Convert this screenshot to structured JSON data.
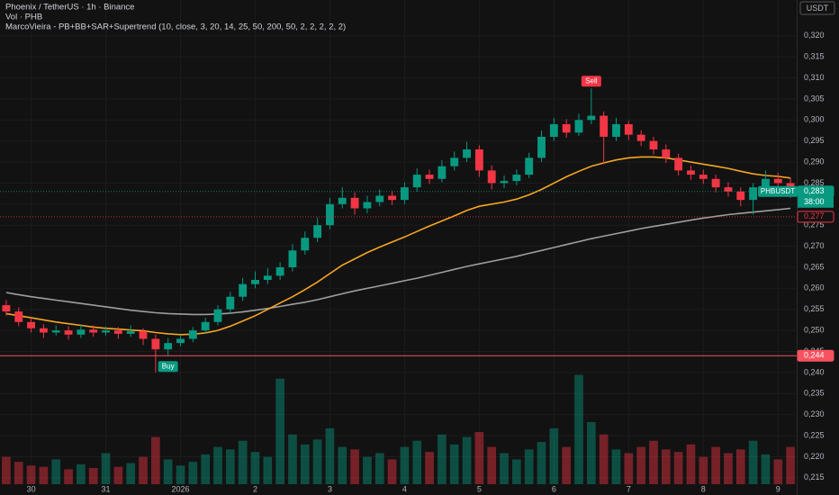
{
  "chart_data": {
    "type": "candlestick",
    "title": "Phoenix / TetherUS · 1h · Binance",
    "volume_label": "Vol · PHB",
    "indicator_label": "MarcoVieira - PB+BB+SAR+Supertrend (10, close, 3, 20, 14, 25, 50, 200, 50, 2, 2, 2, 2, 2)",
    "currency": "USDT",
    "symbol": "PHBUSDT",
    "countdown": "38:00",
    "up_color": "#089981",
    "down_color": "#f23645",
    "categories": [
      null,
      null,
      "30",
      null,
      null,
      null,
      null,
      null,
      "31",
      null,
      null,
      null,
      null,
      null,
      "2026",
      null,
      null,
      null,
      null,
      null,
      "2",
      null,
      null,
      null,
      null,
      null,
      "3",
      null,
      null,
      null,
      null,
      null,
      "4",
      null,
      null,
      null,
      null,
      null,
      "5",
      null,
      null,
      null,
      null,
      null,
      "6",
      null,
      null,
      null,
      null,
      null,
      "7",
      null,
      null,
      null,
      null,
      null,
      "8",
      null,
      null,
      null,
      null,
      null,
      "9",
      null
    ],
    "open": [
      0.256,
      0.2545,
      0.252,
      0.2505,
      0.2495,
      0.25,
      0.249,
      0.2502,
      0.2495,
      0.25,
      0.2492,
      0.2498,
      0.248,
      0.2455,
      0.247,
      0.248,
      0.25,
      0.252,
      0.255,
      0.258,
      0.261,
      0.262,
      0.263,
      0.265,
      0.269,
      0.272,
      0.275,
      0.28,
      0.2815,
      0.279,
      0.2805,
      0.282,
      0.281,
      0.284,
      0.287,
      0.286,
      0.289,
      0.291,
      0.293,
      0.288,
      0.285,
      0.2855,
      0.287,
      0.291,
      0.296,
      0.299,
      0.297,
      0.3,
      0.301,
      0.296,
      0.299,
      0.2965,
      0.295,
      0.293,
      0.291,
      0.288,
      0.287,
      0.286,
      0.284,
      0.283,
      0.281,
      0.284,
      0.286,
      0.285
    ],
    "high": [
      0.2572,
      0.2555,
      0.253,
      0.2515,
      0.2512,
      0.251,
      0.2515,
      0.2512,
      0.251,
      0.2508,
      0.2512,
      0.2505,
      0.249,
      0.2482,
      0.249,
      0.2508,
      0.253,
      0.256,
      0.2592,
      0.2625,
      0.264,
      0.2648,
      0.2662,
      0.2705,
      0.2735,
      0.2768,
      0.2815,
      0.284,
      0.2828,
      0.282,
      0.2835,
      0.2832,
      0.2852,
      0.2885,
      0.2882,
      0.2905,
      0.2925,
      0.2948,
      0.294,
      0.2892,
      0.2868,
      0.2882,
      0.2922,
      0.2975,
      0.3005,
      0.3002,
      0.3015,
      0.3075,
      0.302,
      0.3005,
      0.2998,
      0.2975,
      0.296,
      0.2942,
      0.292,
      0.2892,
      0.2882,
      0.287,
      0.2852,
      0.284,
      0.285,
      0.288,
      0.2875,
      0.2862
    ],
    "low": [
      0.2535,
      0.251,
      0.2495,
      0.2482,
      0.2488,
      0.2478,
      0.2482,
      0.2485,
      0.2488,
      0.248,
      0.2485,
      0.2465,
      0.24,
      0.244,
      0.2462,
      0.2472,
      0.2492,
      0.2512,
      0.2542,
      0.257,
      0.26,
      0.261,
      0.262,
      0.264,
      0.268,
      0.271,
      0.274,
      0.279,
      0.2775,
      0.2778,
      0.2795,
      0.2798,
      0.28,
      0.283,
      0.2848,
      0.2852,
      0.288,
      0.29,
      0.2865,
      0.2835,
      0.2838,
      0.2845,
      0.2862,
      0.29,
      0.295,
      0.2958,
      0.2962,
      0.299,
      0.2895,
      0.295,
      0.2952,
      0.2938,
      0.2918,
      0.2898,
      0.2868,
      0.2858,
      0.2848,
      0.2828,
      0.2818,
      0.2795,
      0.2775,
      0.283,
      0.284,
      0.2815
    ],
    "close": [
      0.2545,
      0.252,
      0.2505,
      0.2495,
      0.25,
      0.249,
      0.2502,
      0.2495,
      0.25,
      0.2492,
      0.2498,
      0.248,
      0.2455,
      0.247,
      0.248,
      0.25,
      0.252,
      0.255,
      0.258,
      0.261,
      0.262,
      0.263,
      0.265,
      0.269,
      0.272,
      0.275,
      0.28,
      0.2815,
      0.279,
      0.2805,
      0.282,
      0.281,
      0.284,
      0.287,
      0.286,
      0.289,
      0.291,
      0.293,
      0.288,
      0.285,
      0.2855,
      0.287,
      0.291,
      0.296,
      0.299,
      0.297,
      0.3,
      0.301,
      0.296,
      0.299,
      0.2965,
      0.295,
      0.293,
      0.291,
      0.288,
      0.287,
      0.286,
      0.284,
      0.283,
      0.281,
      0.284,
      0.286,
      0.285,
      0.283
    ],
    "volume": [
      22,
      18,
      15,
      14,
      20,
      12,
      16,
      13,
      25,
      14,
      17,
      22,
      38,
      20,
      15,
      18,
      24,
      30,
      28,
      35,
      26,
      22,
      85,
      40,
      32,
      36,
      45,
      30,
      28,
      22,
      25,
      20,
      30,
      35,
      26,
      40,
      32,
      38,
      42,
      30,
      25,
      20,
      28,
      34,
      45,
      30,
      88,
      50,
      40,
      28,
      25,
      30,
      35,
      28,
      26,
      32,
      22,
      30,
      25,
      28,
      35,
      24,
      20,
      30
    ],
    "volume_ylim": [
      0,
      100
    ],
    "overlays": [
      {
        "color": "#9e9e9e",
        "values": [
          0.259,
          0.2585,
          0.258,
          0.2576,
          0.2572,
          0.2568,
          0.2564,
          0.256,
          0.2556,
          0.2552,
          0.2548,
          0.2545,
          0.2542,
          0.254,
          0.2539,
          0.2538,
          0.2538,
          0.2539,
          0.2541,
          0.2544,
          0.2548,
          0.2552,
          0.2557,
          0.2562,
          0.2567,
          0.2573,
          0.258,
          0.2587,
          0.2594,
          0.26,
          0.2606,
          0.2612,
          0.2618,
          0.2624,
          0.2631,
          0.2638,
          0.2645,
          0.2652,
          0.2658,
          0.2664,
          0.267,
          0.2676,
          0.2683,
          0.269,
          0.2697,
          0.2704,
          0.2711,
          0.2718,
          0.2724,
          0.273,
          0.2736,
          0.2742,
          0.2747,
          0.2752,
          0.2757,
          0.2762,
          0.2767,
          0.2771,
          0.2775,
          0.2778,
          0.2781,
          0.2784,
          0.2787,
          0.279
        ]
      },
      {
        "color": "#f5a623",
        "values": [
          0.254,
          0.2535,
          0.253,
          0.2525,
          0.252,
          0.2516,
          0.2512,
          0.2508,
          0.2505,
          0.2503,
          0.2501,
          0.2499,
          0.2495,
          0.2492,
          0.249,
          0.2491,
          0.2494,
          0.25,
          0.251,
          0.2522,
          0.2535,
          0.255,
          0.2565,
          0.258,
          0.2597,
          0.2615,
          0.2635,
          0.2655,
          0.267,
          0.2685,
          0.2698,
          0.271,
          0.2722,
          0.2735,
          0.2748,
          0.276,
          0.2772,
          0.2785,
          0.2795,
          0.28,
          0.2805,
          0.2812,
          0.2822,
          0.2835,
          0.285,
          0.2865,
          0.2878,
          0.289,
          0.2898,
          0.2905,
          0.291,
          0.2912,
          0.2912,
          0.291,
          0.2905,
          0.29,
          0.2895,
          0.289,
          0.2885,
          0.2878,
          0.2872,
          0.2868,
          0.2866,
          0.2862
        ]
      }
    ],
    "signals": [
      {
        "label": "Sell",
        "at": 47,
        "side": "above",
        "color": "#f23645"
      },
      {
        "label": "Buy",
        "at": 13,
        "side": "below",
        "color": "#089981"
      }
    ],
    "price_tags": [
      {
        "value": 0.283,
        "label": "0,283",
        "color": "#089981"
      },
      {
        "value": 0.277,
        "label": "0,277",
        "color": "#f23645"
      },
      {
        "value": 0.244,
        "label": "0,244",
        "color": "#f7525f"
      }
    ],
    "ylim": [
      0.2109,
      0.3285
    ],
    "yticks": [
      {
        "value": 0.215,
        "label": "0,215"
      },
      {
        "value": 0.22,
        "label": "0,220"
      },
      {
        "value": 0.225,
        "label": "0,225"
      },
      {
        "value": 0.23,
        "label": "0,230"
      },
      {
        "value": 0.235,
        "label": "0,235"
      },
      {
        "value": 0.24,
        "label": "0,240"
      },
      {
        "value": 0.245,
        "label": "0,245"
      },
      {
        "value": 0.25,
        "label": "0,250"
      },
      {
        "value": 0.255,
        "label": "0,255"
      },
      {
        "value": 0.26,
        "label": "0,260"
      },
      {
        "value": 0.265,
        "label": "0,265"
      },
      {
        "value": 0.27,
        "label": "0,270"
      },
      {
        "value": 0.275,
        "label": "0,275"
      },
      {
        "value": 0.28,
        "label": "0,280"
      },
      {
        "value": 0.285,
        "label": "0,285"
      },
      {
        "value": 0.29,
        "label": "0,290"
      },
      {
        "value": 0.295,
        "label": "0,295"
      },
      {
        "value": 0.3,
        "label": "0,300"
      },
      {
        "value": 0.305,
        "label": "0,305"
      },
      {
        "value": 0.31,
        "label": "0,310"
      },
      {
        "value": 0.315,
        "label": "0,315"
      },
      {
        "value": 0.32,
        "label": "0,320"
      }
    ],
    "grid": true
  }
}
